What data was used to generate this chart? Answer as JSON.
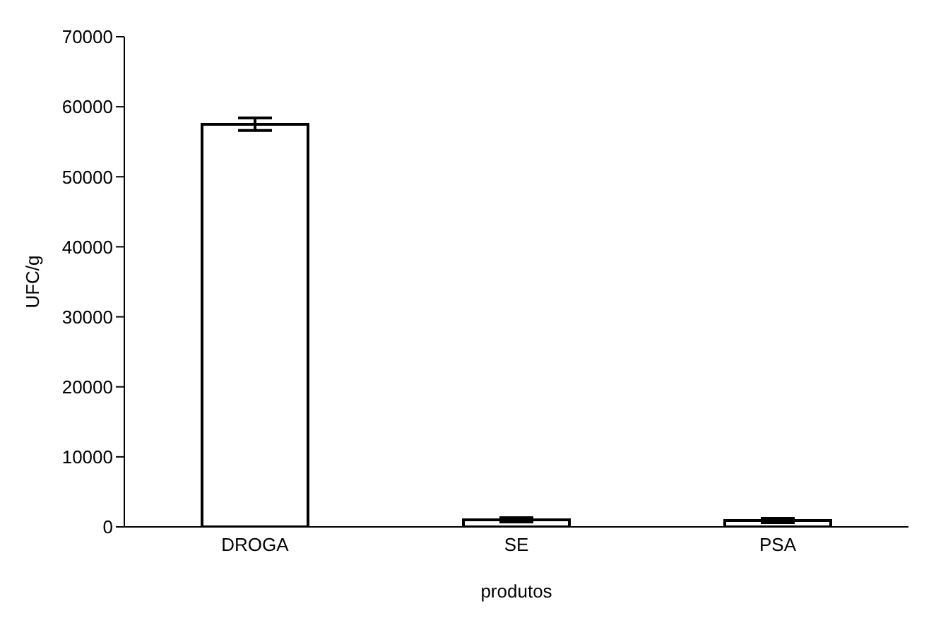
{
  "chart_data": {
    "type": "bar",
    "xlabel": "produtos",
    "ylabel": "UFC/g",
    "categories": [
      "DROGA",
      "SE",
      "PSA"
    ],
    "values": [
      57500,
      1000,
      900
    ],
    "errors": [
      900,
      300,
      300
    ],
    "color": "#ffffff",
    "ylim": [
      0,
      70000
    ],
    "yticks": [
      0,
      10000,
      20000,
      30000,
      40000,
      50000,
      60000,
      70000
    ],
    "grid": false,
    "legend": false
  }
}
